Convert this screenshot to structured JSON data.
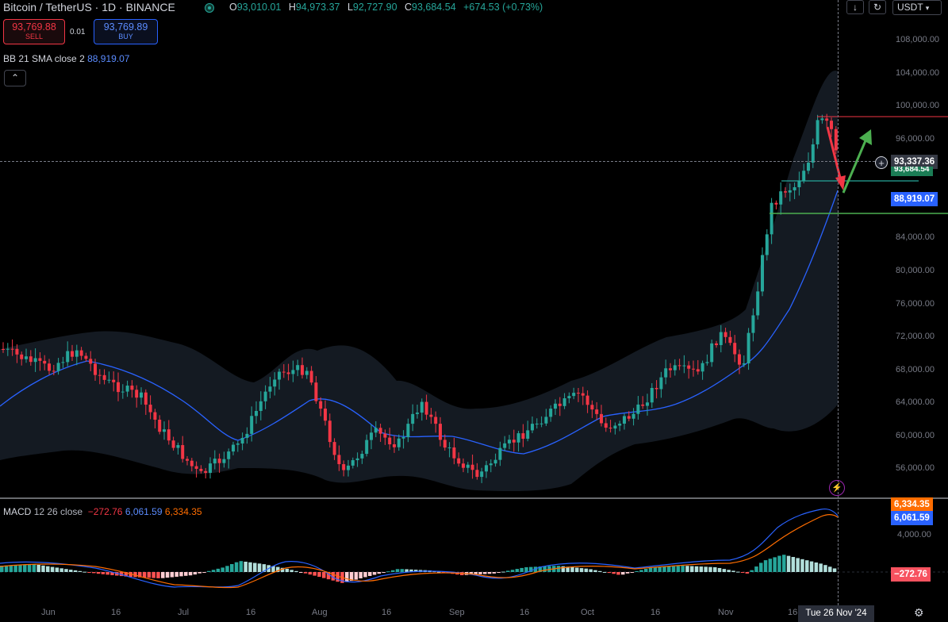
{
  "header": {
    "title": "Bitcoin / TetherUS · 1D · BINANCE",
    "ohlc": [
      {
        "k": "O",
        "v": "93,010.01"
      },
      {
        "k": "H",
        "v": "94,973.37"
      },
      {
        "k": "L",
        "v": "92,727.90"
      },
      {
        "k": "C",
        "v": "93,684.54"
      }
    ],
    "change": "+674.53 (+0.73%)"
  },
  "trade": {
    "sell_price": "93,769.88",
    "sell_label": "SELL",
    "spread": "0.01",
    "buy_price": "93,769.89",
    "buy_label": "BUY"
  },
  "indicators": {
    "bb": {
      "name": "BB",
      "params": "21 SMA close 2",
      "value": "88,919.07"
    },
    "macd": {
      "name": "MACD",
      "params": "12 26 close",
      "hist": "−272.76",
      "macd": "6,061.59",
      "signal": "6,334.35"
    }
  },
  "toolbar": {
    "down_icon": "down-arrow-icon",
    "refresh_icon": "refresh-icon",
    "currency": "USDT"
  },
  "price_axis": {
    "ticks": [
      "108,000.00",
      "104,000.00",
      "100,000.00",
      "96,000.00",
      "84,000.00",
      "80,000.00",
      "76,000.00",
      "72,000.00",
      "68,000.00",
      "64,000.00",
      "60,000.00",
      "56,000.00"
    ],
    "crosshair_price": "93,337.36",
    "current_price_partial": "93,684.54",
    "bb_price": "88,919.07"
  },
  "macd_axis": {
    "ticks": [
      "4,000.00"
    ],
    "signal_tag": "6,334.35",
    "macd_tag": "6,061.59",
    "hist_tag": "−272.76"
  },
  "time_axis": {
    "labels": [
      "Jun",
      "16",
      "Jul",
      "16",
      "Aug",
      "16",
      "Sep",
      "16",
      "Oct",
      "16",
      "Nov",
      "16"
    ],
    "current": "Tue 26 Nov '24"
  },
  "colors": {
    "up": "#26a69a",
    "down": "#f23645",
    "bb_basis": "#2962ff",
    "macd_line": "#2962ff",
    "signal_line": "#ff6d00",
    "bb_band": "#141a22"
  },
  "chart_data": {
    "type": "candlestick",
    "symbol": "BTCUSDT",
    "interval": "1D",
    "ylim": [
      52000,
      110000
    ],
    "price_levels": [
      97750,
      91600,
      87000
    ],
    "x": [
      "Jun",
      "Jul",
      "Aug",
      "Sep",
      "Oct",
      "Nov"
    ],
    "close_approx": [
      67500,
      62500,
      64500,
      58500,
      63000,
      93684.54
    ],
    "bb_basis_last": 88919.07,
    "macd": {
      "hist_last": -272.76,
      "macd_last": 6061.59,
      "signal_last": 6334.35
    }
  }
}
